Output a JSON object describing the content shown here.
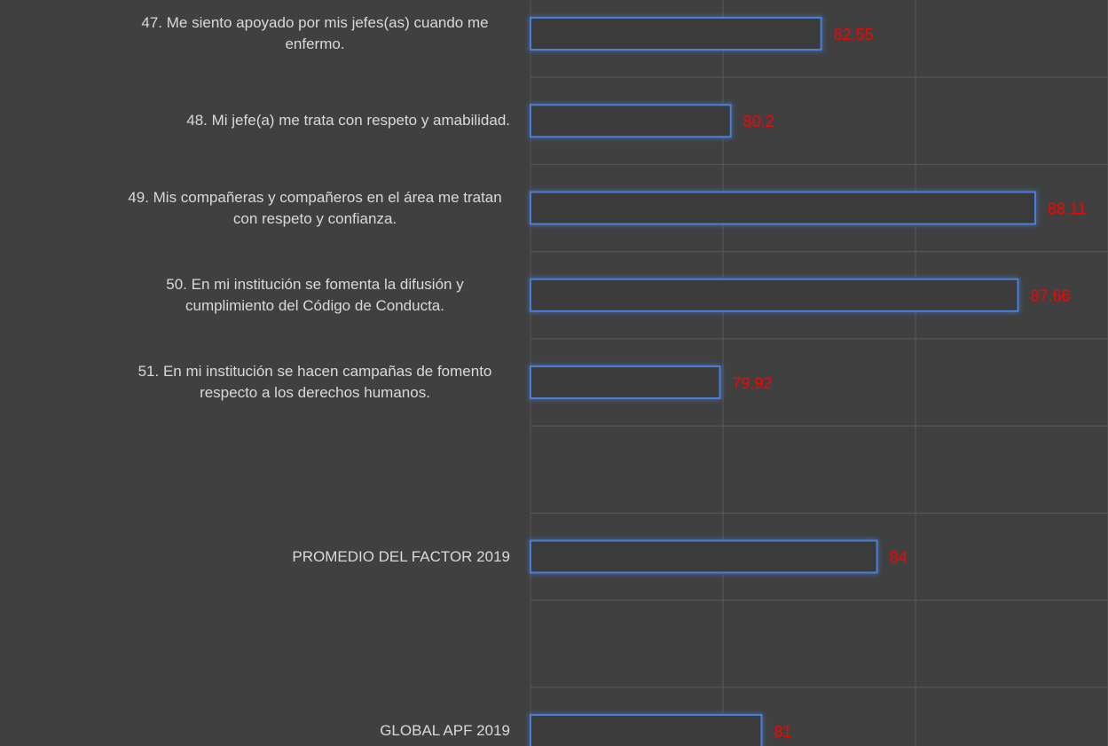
{
  "chart_data": {
    "type": "bar",
    "orientation": "horizontal",
    "categories": [
      "47. Me siento apoyado por mis jefes(as) cuando me enfermo.",
      "48. Mi jefe(a) me trata con respeto y amabilidad.",
      "49. Mis compañeras y compañeros en el área me tratan con respeto y confianza.",
      "50. En mi institución se fomenta la difusión y cumplimiento del Código de Conducta.",
      "51. En mi institución se hacen campañas de fomento respecto a los derechos humanos.",
      null,
      "PROMEDIO DEL FACTOR   2019",
      null,
      "GLOBAL APF   2019"
    ],
    "values": [
      82.55,
      80.2,
      88.11,
      87.66,
      79.92,
      null,
      84,
      null,
      81
    ],
    "color": "#4a7fd6",
    "label_color": "#ff0000",
    "xlim": [
      75,
      90
    ],
    "xticks": [
      75,
      80,
      85,
      90
    ],
    "grid": true
  }
}
